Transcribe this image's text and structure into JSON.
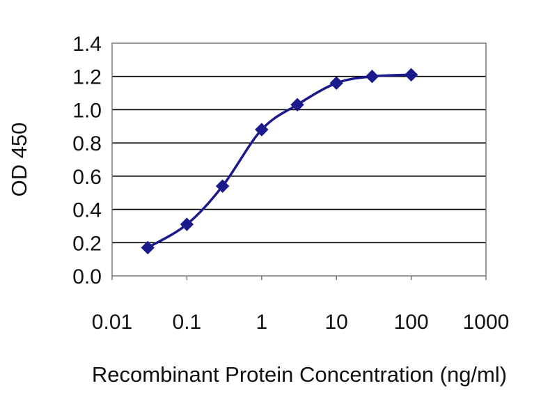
{
  "chart_data": {
    "type": "line",
    "title": "",
    "xlabel": "Recombinant Protein Concentration (ng/ml)",
    "ylabel": "OD 450",
    "x_scale": "log",
    "xlim": [
      0.01,
      1000
    ],
    "ylim": [
      0,
      1.4
    ],
    "x_ticks": [
      "0.01",
      "0.1",
      "1",
      "10",
      "100",
      "1000"
    ],
    "y_ticks": [
      "0.0",
      "0.2",
      "0.4",
      "0.6",
      "0.8",
      "1.0",
      "1.2",
      "1.4"
    ],
    "grid": "horizontal",
    "legend": "none",
    "series": [
      {
        "color": "#1a1a8c",
        "marker": "diamond",
        "x": [
          0.03,
          0.1,
          0.3,
          1,
          3,
          10,
          30,
          100
        ],
        "y": [
          0.17,
          0.31,
          0.54,
          0.88,
          1.03,
          1.16,
          1.2,
          1.21
        ]
      }
    ],
    "colors": {
      "series": "#1a1a8c",
      "grid": "#000000",
      "frame": "#777777"
    }
  }
}
